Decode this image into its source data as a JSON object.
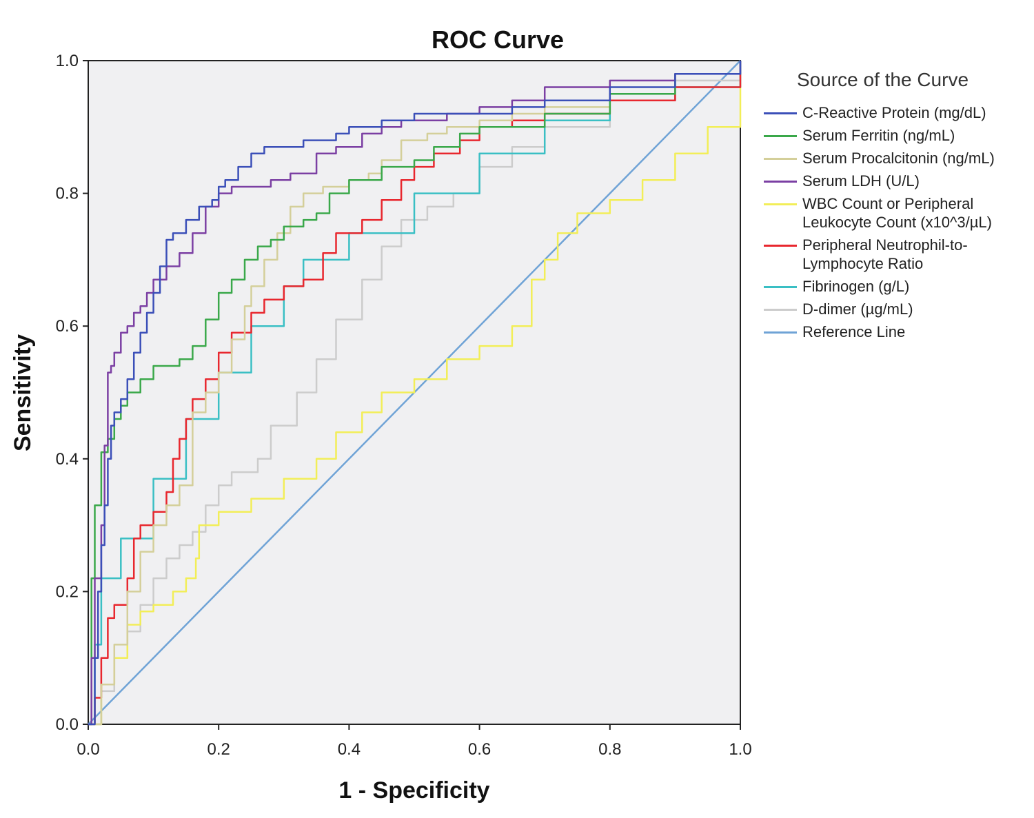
{
  "chart_data": {
    "type": "line",
    "title": "ROC Curve",
    "xlabel": "1 - Specificity",
    "ylabel": "Sensitivity",
    "xlim": [
      0,
      1
    ],
    "ylim": [
      0,
      1
    ],
    "xticks": [
      "0.0",
      "0.2",
      "0.4",
      "0.6",
      "0.8",
      "1.0"
    ],
    "yticks": [
      "0.0",
      "0.2",
      "0.4",
      "0.6",
      "0.8",
      "1.0"
    ],
    "legend_title": "Source of the Curve",
    "legend_position": "right",
    "grid": false,
    "plot_background": "#f0f0f2",
    "series": [
      {
        "name": "C-Reactive Protein (mg/dL)",
        "color": "#3b4fb8",
        "x": [
          0,
          0.01,
          0.015,
          0.02,
          0.025,
          0.03,
          0.035,
          0.04,
          0.05,
          0.06,
          0.07,
          0.08,
          0.09,
          0.1,
          0.11,
          0.12,
          0.13,
          0.15,
          0.17,
          0.19,
          0.2,
          0.21,
          0.23,
          0.25,
          0.27,
          0.3,
          0.33,
          0.36,
          0.38,
          0.4,
          0.45,
          0.5,
          0.55,
          0.6,
          0.65,
          0.7,
          0.8,
          0.9,
          1.0
        ],
        "y": [
          0,
          0.1,
          0.2,
          0.27,
          0.33,
          0.4,
          0.45,
          0.47,
          0.49,
          0.52,
          0.56,
          0.59,
          0.62,
          0.65,
          0.69,
          0.73,
          0.74,
          0.76,
          0.78,
          0.79,
          0.81,
          0.82,
          0.84,
          0.86,
          0.87,
          0.87,
          0.88,
          0.88,
          0.89,
          0.9,
          0.91,
          0.92,
          0.92,
          0.92,
          0.93,
          0.94,
          0.96,
          0.98,
          1.0
        ]
      },
      {
        "name": "Serum Ferritin (ng/mL)",
        "color": "#3aa84a",
        "x": [
          0,
          0.005,
          0.01,
          0.02,
          0.03,
          0.04,
          0.05,
          0.06,
          0.08,
          0.1,
          0.14,
          0.16,
          0.18,
          0.2,
          0.22,
          0.24,
          0.26,
          0.28,
          0.3,
          0.33,
          0.35,
          0.37,
          0.4,
          0.45,
          0.5,
          0.53,
          0.57,
          0.6,
          0.7,
          0.8,
          0.9,
          1.0
        ],
        "y": [
          0,
          0.22,
          0.33,
          0.41,
          0.43,
          0.46,
          0.48,
          0.5,
          0.52,
          0.54,
          0.55,
          0.57,
          0.61,
          0.65,
          0.67,
          0.7,
          0.72,
          0.73,
          0.75,
          0.76,
          0.77,
          0.8,
          0.82,
          0.84,
          0.85,
          0.87,
          0.89,
          0.9,
          0.92,
          0.95,
          0.98,
          1.0
        ]
      },
      {
        "name": "Serum Procalcitonin (ng/mL)",
        "color": "#d4cf9a",
        "x": [
          0,
          0.02,
          0.04,
          0.06,
          0.08,
          0.1,
          0.12,
          0.14,
          0.16,
          0.18,
          0.2,
          0.22,
          0.24,
          0.25,
          0.27,
          0.29,
          0.31,
          0.33,
          0.36,
          0.4,
          0.43,
          0.45,
          0.48,
          0.52,
          0.55,
          0.6,
          0.65,
          0.7,
          0.8,
          0.9,
          1.0
        ],
        "y": [
          0,
          0.06,
          0.12,
          0.2,
          0.26,
          0.3,
          0.33,
          0.36,
          0.47,
          0.5,
          0.53,
          0.58,
          0.63,
          0.66,
          0.7,
          0.74,
          0.78,
          0.8,
          0.81,
          0.82,
          0.83,
          0.85,
          0.88,
          0.89,
          0.9,
          0.91,
          0.92,
          0.93,
          0.95,
          0.98,
          1.0
        ]
      },
      {
        "name": "Serum LDH (U/L)",
        "color": "#7b3fa3",
        "x": [
          0,
          0.005,
          0.01,
          0.02,
          0.025,
          0.03,
          0.035,
          0.04,
          0.05,
          0.06,
          0.07,
          0.08,
          0.09,
          0.1,
          0.12,
          0.14,
          0.16,
          0.18,
          0.2,
          0.22,
          0.25,
          0.28,
          0.31,
          0.35,
          0.38,
          0.42,
          0.45,
          0.48,
          0.55,
          0.6,
          0.65,
          0.7,
          0.8,
          0.9,
          1.0
        ],
        "y": [
          0,
          0.1,
          0.22,
          0.3,
          0.42,
          0.53,
          0.54,
          0.56,
          0.59,
          0.6,
          0.62,
          0.63,
          0.65,
          0.67,
          0.69,
          0.71,
          0.74,
          0.78,
          0.8,
          0.81,
          0.81,
          0.82,
          0.83,
          0.86,
          0.87,
          0.89,
          0.9,
          0.91,
          0.92,
          0.93,
          0.94,
          0.96,
          0.97,
          0.98,
          1.0
        ]
      },
      {
        "name": "WBC Count or Peripheral Leukocyte Count (x10^3/µL)",
        "color": "#f2ee58",
        "x": [
          0,
          0.02,
          0.04,
          0.06,
          0.08,
          0.1,
          0.13,
          0.15,
          0.165,
          0.17,
          0.2,
          0.25,
          0.3,
          0.35,
          0.38,
          0.42,
          0.45,
          0.5,
          0.55,
          0.6,
          0.65,
          0.68,
          0.7,
          0.72,
          0.75,
          0.8,
          0.85,
          0.9,
          0.95,
          1.0
        ],
        "y": [
          0,
          0.06,
          0.1,
          0.15,
          0.17,
          0.18,
          0.2,
          0.22,
          0.25,
          0.3,
          0.32,
          0.34,
          0.37,
          0.4,
          0.44,
          0.47,
          0.5,
          0.52,
          0.55,
          0.57,
          0.6,
          0.67,
          0.7,
          0.74,
          0.77,
          0.79,
          0.82,
          0.86,
          0.9,
          1.0
        ]
      },
      {
        "name": "Peripheral Neutrophil-to-Lymphocyte Ratio",
        "color": "#e8272e",
        "x": [
          0,
          0.01,
          0.02,
          0.03,
          0.04,
          0.06,
          0.07,
          0.08,
          0.1,
          0.12,
          0.13,
          0.14,
          0.15,
          0.16,
          0.18,
          0.2,
          0.22,
          0.25,
          0.27,
          0.3,
          0.33,
          0.36,
          0.38,
          0.42,
          0.45,
          0.48,
          0.5,
          0.53,
          0.57,
          0.6,
          0.65,
          0.7,
          0.8,
          0.9,
          1.0
        ],
        "y": [
          0,
          0.04,
          0.1,
          0.16,
          0.18,
          0.22,
          0.28,
          0.3,
          0.32,
          0.35,
          0.4,
          0.43,
          0.46,
          0.49,
          0.52,
          0.56,
          0.59,
          0.62,
          0.64,
          0.66,
          0.67,
          0.71,
          0.74,
          0.76,
          0.79,
          0.82,
          0.84,
          0.86,
          0.88,
          0.9,
          0.91,
          0.92,
          0.94,
          0.96,
          1.0
        ]
      },
      {
        "name": "Fibrinogen (g/L)",
        "color": "#3abfc4",
        "x": [
          0,
          0.01,
          0.02,
          0.05,
          0.1,
          0.15,
          0.2,
          0.25,
          0.3,
          0.33,
          0.4,
          0.5,
          0.6,
          0.7,
          0.8,
          0.9,
          1.0
        ],
        "y": [
          0,
          0.12,
          0.22,
          0.28,
          0.37,
          0.46,
          0.53,
          0.6,
          0.66,
          0.7,
          0.74,
          0.8,
          0.86,
          0.91,
          0.94,
          0.96,
          1.0
        ]
      },
      {
        "name": "D-dimer (µg/mL)",
        "color": "#cccccc",
        "x": [
          0,
          0.02,
          0.04,
          0.06,
          0.08,
          0.1,
          0.12,
          0.14,
          0.16,
          0.18,
          0.2,
          0.22,
          0.26,
          0.28,
          0.32,
          0.35,
          0.38,
          0.42,
          0.45,
          0.48,
          0.52,
          0.56,
          0.6,
          0.65,
          0.7,
          0.8,
          0.9,
          1.0
        ],
        "y": [
          0,
          0.05,
          0.1,
          0.14,
          0.18,
          0.22,
          0.25,
          0.27,
          0.29,
          0.33,
          0.36,
          0.38,
          0.4,
          0.45,
          0.5,
          0.55,
          0.61,
          0.67,
          0.72,
          0.76,
          0.78,
          0.8,
          0.84,
          0.87,
          0.9,
          0.94,
          0.97,
          1.0
        ]
      },
      {
        "name": "Reference Line",
        "color": "#6fa3d6",
        "x": [
          0,
          1
        ],
        "y": [
          0,
          1
        ]
      }
    ]
  }
}
